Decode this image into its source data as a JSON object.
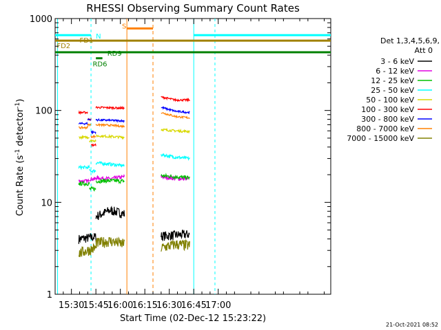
{
  "chart_data": {
    "type": "line",
    "title": "RHESSI Observing Summary Count Rates",
    "xlabel": "Start Time (02-Dec-12 15:23:22)",
    "ylabel_main": "Count Rate (s",
    "ylabel_sup1": "-1",
    "ylabel_mid": " detector",
    "ylabel_sup2": "-1",
    "ylabel_end": ")",
    "x_unit": "minutes of day",
    "xlim": [
      920,
      1089
    ],
    "ylim": [
      1,
      1000
    ],
    "y_scale": "log",
    "x_ticks": [
      {
        "t": 930,
        "label": "15:30"
      },
      {
        "t": 945,
        "label": "15:45"
      },
      {
        "t": 960,
        "label": "16:00"
      },
      {
        "t": 975,
        "label": "16:15"
      },
      {
        "t": 990,
        "label": "16:30"
      },
      {
        "t": 1005,
        "label": "16:45"
      },
      {
        "t": 1020,
        "label": "17:00"
      }
    ],
    "y_ticks": [
      {
        "v": 1,
        "label": "1"
      },
      {
        "v": 10,
        "label": "10"
      },
      {
        "v": 100,
        "label": "100"
      },
      {
        "v": 1000,
        "label": "1000"
      }
    ],
    "detectors": "Det 1,3,4,5,6,9,",
    "attenuator": "Att 0",
    "footer": "21-Oct-2021 08:52",
    "series": [
      {
        "name": "3 - 6 keV",
        "color": "#000000",
        "noise": 0.12,
        "segs": [
          {
            "start": 934.5,
            "end": 945,
            "values": [
              4,
              4.2
            ]
          },
          {
            "start": 945,
            "end": 962.5,
            "values": [
              7,
              8.2,
              7.5
            ]
          },
          {
            "start": 985,
            "end": 1002.5,
            "values": [
              4.3,
              4.5
            ]
          }
        ]
      },
      {
        "name": "6 - 12 keV",
        "color": "#e000e0",
        "noise": 0.05,
        "segs": [
          {
            "start": 934.5,
            "end": 941,
            "values": [
              17,
              17
            ]
          },
          {
            "start": 941,
            "end": 945,
            "values": [
              18,
              18
            ]
          },
          {
            "start": 945,
            "end": 962.5,
            "values": [
              18.5,
              18,
              19
            ]
          },
          {
            "start": 985,
            "end": 1002.5,
            "values": [
              19,
              18.2,
              18
            ]
          }
        ]
      },
      {
        "name": "12 - 25 keV",
        "color": "#00c000",
        "noise": 0.05,
        "segs": [
          {
            "start": 934.5,
            "end": 941,
            "values": [
              16,
              16
            ]
          },
          {
            "start": 941,
            "end": 945,
            "values": [
              14,
              14
            ]
          },
          {
            "start": 945,
            "end": 962.5,
            "values": [
              17,
              17.2,
              17
            ]
          },
          {
            "start": 985,
            "end": 1002.5,
            "values": [
              19.5,
              19,
              18.5
            ]
          }
        ]
      },
      {
        "name": "25 - 50 keV",
        "color": "#00ffff",
        "noise": 0.04,
        "segs": [
          {
            "start": 934.5,
            "end": 941,
            "values": [
              24,
              24
            ]
          },
          {
            "start": 941,
            "end": 945,
            "values": [
              22,
              22
            ]
          },
          {
            "start": 945,
            "end": 962.5,
            "values": [
              27,
              26,
              25
            ]
          },
          {
            "start": 985,
            "end": 1002.5,
            "values": [
              33,
              31,
              30
            ]
          }
        ]
      },
      {
        "name": "50 - 100 keV",
        "color": "#d8d800",
        "noise": 0.03,
        "segs": [
          {
            "start": 934.5,
            "end": 941,
            "values": [
              51,
              51
            ]
          },
          {
            "start": 941,
            "end": 945,
            "values": [
              47,
              47
            ]
          },
          {
            "start": 945,
            "end": 962.5,
            "values": [
              53,
              52,
              51
            ]
          },
          {
            "start": 985,
            "end": 1002.5,
            "values": [
              62,
              60,
              59
            ]
          }
        ]
      },
      {
        "name": "100 - 300 keV",
        "color": "#ff0000",
        "noise": 0.025,
        "segs": [
          {
            "start": 934.5,
            "end": 940,
            "values": [
              95,
              95
            ]
          },
          {
            "start": 940,
            "end": 942,
            "values": [
              80,
              80
            ]
          },
          {
            "start": 942,
            "end": 945,
            "values": [
              42,
              42
            ]
          },
          {
            "start": 945,
            "end": 962.5,
            "values": [
              108,
              107,
              106
            ]
          },
          {
            "start": 985,
            "end": 1002.5,
            "values": [
              140,
              130,
              130
            ]
          }
        ]
      },
      {
        "name": "300 - 800 keV",
        "color": "#0000ff",
        "noise": 0.025,
        "segs": [
          {
            "start": 934.5,
            "end": 940,
            "values": [
              72,
              72
            ]
          },
          {
            "start": 940,
            "end": 942,
            "values": [
              80,
              80
            ]
          },
          {
            "start": 942,
            "end": 945,
            "values": [
              58,
              58
            ]
          },
          {
            "start": 945,
            "end": 962.5,
            "values": [
              79,
              78,
              77
            ]
          },
          {
            "start": 985,
            "end": 1002.5,
            "values": [
              108,
              98,
              95
            ]
          }
        ]
      },
      {
        "name": "800 - 7000 keV",
        "color": "#ff8000",
        "noise": 0.025,
        "segs": [
          {
            "start": 934.5,
            "end": 940,
            "values": [
              65,
              65
            ]
          },
          {
            "start": 940,
            "end": 942,
            "values": [
              70,
              70
            ]
          },
          {
            "start": 942,
            "end": 945,
            "values": [
              52,
              52
            ]
          },
          {
            "start": 945,
            "end": 962.5,
            "values": [
              70,
              69,
              67
            ]
          },
          {
            "start": 985,
            "end": 1002.5,
            "values": [
              95,
              86,
              83
            ]
          }
        ]
      },
      {
        "name": "7000 - 15000 keV",
        "color": "#808000",
        "noise": 0.14,
        "segs": [
          {
            "start": 934.5,
            "end": 945,
            "values": [
              2.8,
              3.2
            ]
          },
          {
            "start": 945,
            "end": 962.5,
            "values": [
              3.6,
              3.8,
              3.5
            ]
          },
          {
            "start": 985,
            "end": 1002.5,
            "values": [
              3.2,
              3.5,
              3.4
            ]
          }
        ]
      }
    ],
    "flags": [
      {
        "label": "N",
        "color": "#00ffff",
        "y": 660,
        "segs": [
          [
            920,
            942
          ]
        ],
        "label_t": 945,
        "label_dy": 5
      },
      {
        "label": "S",
        "color": "#ff8000",
        "y": 780,
        "segs": [
          [
            964,
            980
          ]
        ],
        "label_t": 961,
        "label_dy": 0
      },
      {
        "label": "FD1",
        "color": "#a08000",
        "y": 575,
        "segs": [
          [
            920,
            1089
          ]
        ],
        "label_t": 935,
        "label_dy": 3
      },
      {
        "label": "FD2",
        "color": "#a08000",
        "y": 575,
        "segs": [],
        "label_t": 921,
        "label_dy": 11
      },
      {
        "label": "RD9",
        "color": "#008000",
        "y": 430,
        "segs": [
          [
            920,
            1089
          ]
        ],
        "label_t": 952,
        "label_dy": 5
      },
      {
        "label": "RD6",
        "color": "#008000",
        "y": 370,
        "segs": [
          [
            945,
            949
          ]
        ],
        "label_t": 943,
        "label_dy": 12
      },
      {
        "label": "N",
        "color": "#00ffff",
        "y": 660,
        "segs": [
          [
            1005,
            1089
          ]
        ],
        "label_t": null,
        "label_dy": 0
      }
    ],
    "vlines": [
      {
        "t": 921.5,
        "color": "#00ffff",
        "dash": "0"
      },
      {
        "t": 942,
        "color": "#00ffff",
        "dash": "4,4"
      },
      {
        "t": 964,
        "color": "#ff8000",
        "dash": "0"
      },
      {
        "t": 980,
        "color": "#ff8000",
        "dash": "5,4"
      },
      {
        "t": 1005,
        "color": "#00ffff",
        "dash": "0"
      },
      {
        "t": 1018,
        "color": "#00ffff",
        "dash": "4,4"
      }
    ]
  }
}
